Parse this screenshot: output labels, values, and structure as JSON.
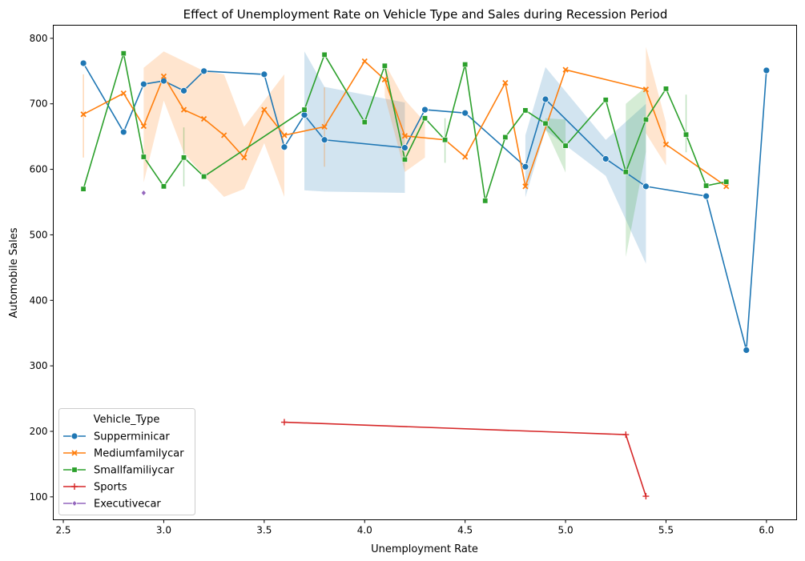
{
  "chart_data": {
    "type": "line",
    "title": "Effect of Unemployment Rate on Vehicle Type and Sales during Recession Period",
    "xlabel": "Unemployment Rate",
    "ylabel": "Automobile Sales",
    "xlim": [
      2.45,
      6.15
    ],
    "ylim": [
      65,
      820
    ],
    "xticks": [
      "2.5",
      "3.0",
      "3.5",
      "4.0",
      "4.5",
      "5.0",
      "5.5",
      "6.0"
    ],
    "yticks": [
      "100",
      "200",
      "300",
      "400",
      "500",
      "600",
      "700",
      "800"
    ],
    "grid": false,
    "legend": {
      "title": "Vehicle_Type",
      "placement": "lower-left"
    },
    "series": [
      {
        "name": "Supperminicar",
        "color": "#1f77b4",
        "marker": "circle",
        "x": [
          2.6,
          2.8,
          2.9,
          3.0,
          3.1,
          3.2,
          3.5,
          3.6,
          3.7,
          3.8,
          4.2,
          4.3,
          4.5,
          4.8,
          4.9,
          5.2,
          5.4,
          5.7,
          5.9,
          6.0
        ],
        "y": [
          762,
          657,
          730,
          735,
          720,
          750,
          745,
          634,
          683,
          645,
          633,
          691,
          686,
          604,
          707,
          616,
          574,
          559,
          324,
          751
        ],
        "band": [
          {
            "x": [
              3.7,
              3.8,
              4.2
            ],
            "lo": [
              568,
              566,
              564
            ],
            "hi": [
              780,
              726,
              702
            ]
          },
          {
            "x": [
              4.8,
              4.9,
              5.2,
              5.4
            ],
            "lo": [
              557,
              660,
              590,
              456
            ],
            "hi": [
              652,
              756,
              645,
              700
            ]
          }
        ]
      },
      {
        "name": "Mediumfamilycar",
        "color": "#ff7f0e",
        "marker": "x",
        "x": [
          2.6,
          2.8,
          2.9,
          3.0,
          3.1,
          3.2,
          3.3,
          3.4,
          3.5,
          3.6,
          3.8,
          4.0,
          4.1,
          4.2,
          4.4,
          4.5,
          4.7,
          4.8,
          5.0,
          5.4,
          5.5,
          5.8
        ],
        "y": [
          684,
          716,
          666,
          742,
          691,
          677,
          652,
          618,
          691,
          652,
          665,
          765,
          737,
          651,
          645,
          619,
          732,
          574,
          752,
          722,
          638,
          574
        ],
        "band": [
          {
            "x": [
              2.9,
              3.0,
              3.1,
              3.2,
              3.3,
              3.4,
              3.5,
              3.6
            ],
            "lo": [
              580,
              705,
              625,
              590,
              558,
              570,
              640,
              558
            ],
            "hi": [
              755,
              780,
              765,
              750,
              745,
              665,
              705,
              745
            ]
          },
          {
            "x": [
              4.1,
              4.2,
              4.3
            ],
            "lo": [
              712,
              596,
              618
            ],
            "hi": [
              762,
              706,
              672
            ]
          },
          {
            "x": [
              5.4,
              5.5
            ],
            "lo": [
              655,
              606
            ],
            "hi": [
              787,
              671
            ]
          }
        ],
        "errbars": [
          {
            "x": 2.6,
            "lo": 618,
            "hi": 745
          },
          {
            "x": 3.8,
            "lo": 604,
            "hi": 725
          }
        ]
      },
      {
        "name": "Smallfamiliycar",
        "color": "#2ca02c",
        "marker": "square",
        "x": [
          2.6,
          2.8,
          2.9,
          3.0,
          3.1,
          3.2,
          3.7,
          3.8,
          4.0,
          4.1,
          4.2,
          4.3,
          4.4,
          4.5,
          4.6,
          4.7,
          4.8,
          4.9,
          5.0,
          5.2,
          5.3,
          5.4,
          5.5,
          5.6,
          5.7,
          5.8
        ],
        "y": [
          570,
          777,
          619,
          574,
          618,
          589,
          691,
          775,
          672,
          758,
          615,
          678,
          645,
          760,
          552,
          649,
          690,
          670,
          636,
          706,
          596,
          676,
          723,
          653,
          575,
          581
        ],
        "band": [
          {
            "x": [
              4.9,
              5.0
            ],
            "lo": [
              662,
              595
            ],
            "hi": [
              678,
              676
            ]
          },
          {
            "x": [
              5.3,
              5.4
            ],
            "lo": [
              466,
              627
            ],
            "hi": [
              700,
              726
            ]
          }
        ],
        "errbars": [
          {
            "x": 3.1,
            "lo": 574,
            "hi": 664
          },
          {
            "x": 4.4,
            "lo": 610,
            "hi": 678
          },
          {
            "x": 5.6,
            "lo": 626,
            "hi": 714
          }
        ]
      },
      {
        "name": "Sports",
        "color": "#d62728",
        "marker": "plus",
        "x": [
          3.6,
          5.3,
          5.4
        ],
        "y": [
          214,
          195,
          101
        ]
      },
      {
        "name": "Executivecar",
        "color": "#9467bd",
        "marker": "diamond",
        "x": [
          2.9
        ],
        "y": [
          564
        ]
      }
    ]
  }
}
